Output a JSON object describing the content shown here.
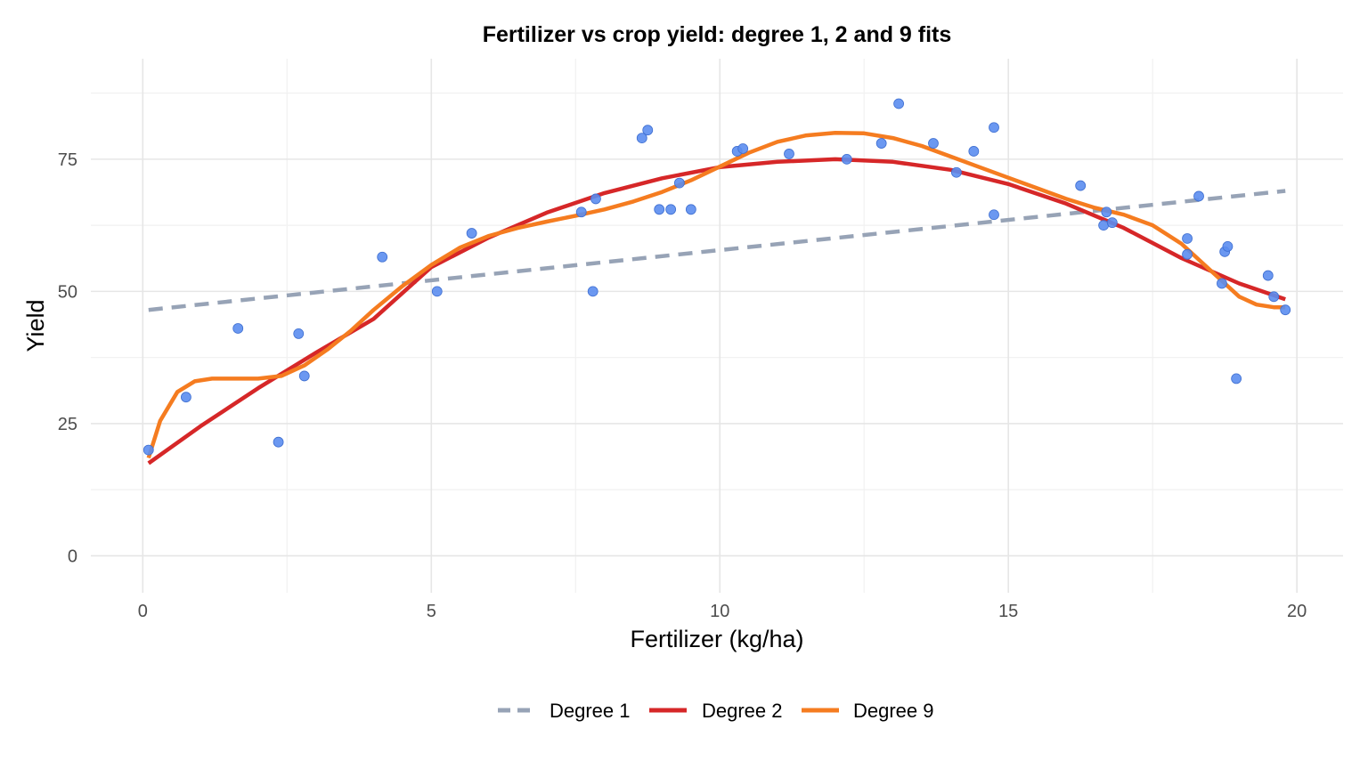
{
  "chart_data": {
    "type": "scatter",
    "title": "Fertilizer vs crop yield: degree 1, 2 and 9 fits",
    "xlabel": "Fertilizer (kg/ha)",
    "ylabel": "Yield",
    "xlim": [
      -0.9,
      20.8
    ],
    "ylim": [
      -7,
      94
    ],
    "x_ticks": [
      0,
      5,
      10,
      15,
      20
    ],
    "y_ticks": [
      0,
      25,
      50,
      75
    ],
    "x_tick_labels": [
      "0",
      "5",
      "10",
      "15",
      "20"
    ],
    "y_tick_labels": [
      "0",
      "25",
      "50",
      "75"
    ],
    "grid": true,
    "legend_position": "bottom",
    "points": {
      "color": "#5b8def",
      "x": [
        0.1,
        0.75,
        1.65,
        2.35,
        2.7,
        2.8,
        4.15,
        5.1,
        5.7,
        7.6,
        7.8,
        7.85,
        8.65,
        8.75,
        8.95,
        9.15,
        9.3,
        9.5,
        10.3,
        10.4,
        11.2,
        12.2,
        12.8,
        13.1,
        13.7,
        14.1,
        14.4,
        14.75,
        14.75,
        16.25,
        16.65,
        16.7,
        16.8,
        18.1,
        18.1,
        18.3,
        18.7,
        18.75,
        18.8,
        18.95,
        19.5,
        19.6,
        19.8
      ],
      "y": [
        20,
        30,
        43,
        21.5,
        42,
        34,
        56.5,
        50,
        61,
        65,
        50,
        67.5,
        79,
        80.5,
        65.5,
        65.5,
        70.5,
        65.5,
        76.5,
        77,
        76,
        75,
        78,
        85.5,
        78,
        72.5,
        76.5,
        81,
        64.5,
        70,
        62.5,
        65,
        63,
        60,
        57,
        68,
        51.5,
        57.5,
        58.5,
        33.5,
        53,
        49,
        46.5
      ]
    },
    "series": [
      {
        "name": "Degree 1",
        "color": "#97a3b6",
        "dash": "dashed",
        "x": [
          0.1,
          19.8
        ],
        "y": [
          46.5,
          69
        ]
      },
      {
        "name": "Degree 2",
        "color": "#d62728",
        "dash": "solid",
        "x": [
          0.1,
          1,
          2,
          3,
          4,
          5,
          6,
          7,
          8,
          9,
          10,
          11,
          12,
          13,
          14,
          15,
          16,
          17,
          18,
          19,
          19.8
        ],
        "y": [
          17.5,
          24.5,
          31.7,
          38.4,
          44.8,
          54.6,
          60.2,
          64.9,
          68.6,
          71.4,
          73.5,
          74.5,
          75,
          74.5,
          73,
          70.3,
          66.6,
          62,
          56.3,
          51.5,
          48.5
        ]
      },
      {
        "name": "Degree 9",
        "color": "#f57c20",
        "dash": "solid",
        "x": [
          0.1,
          0.3,
          0.6,
          0.9,
          1.2,
          1.6,
          2,
          2.4,
          2.8,
          3.2,
          3.6,
          4,
          4.5,
          5,
          5.5,
          6,
          6.5,
          7,
          7.5,
          8,
          8.5,
          9,
          9.5,
          10,
          10.5,
          11,
          11.5,
          12,
          12.5,
          13,
          13.5,
          14,
          14.5,
          15,
          15.5,
          16,
          16.5,
          17,
          17.5,
          18,
          18.5,
          19,
          19.3,
          19.6,
          19.8
        ],
        "y": [
          18.5,
          25.5,
          31,
          33,
          33.5,
          33.5,
          33.5,
          34,
          36,
          39,
          42.5,
          46.5,
          51,
          55,
          58.3,
          60.5,
          62,
          63.2,
          64.3,
          65.5,
          67,
          68.8,
          71,
          73.6,
          76.2,
          78.3,
          79.5,
          80,
          79.9,
          79,
          77.5,
          75.5,
          73.5,
          71.5,
          69.5,
          67.5,
          65.8,
          64.5,
          62.5,
          59,
          54,
          49,
          47.5,
          47,
          47
        ]
      }
    ]
  }
}
